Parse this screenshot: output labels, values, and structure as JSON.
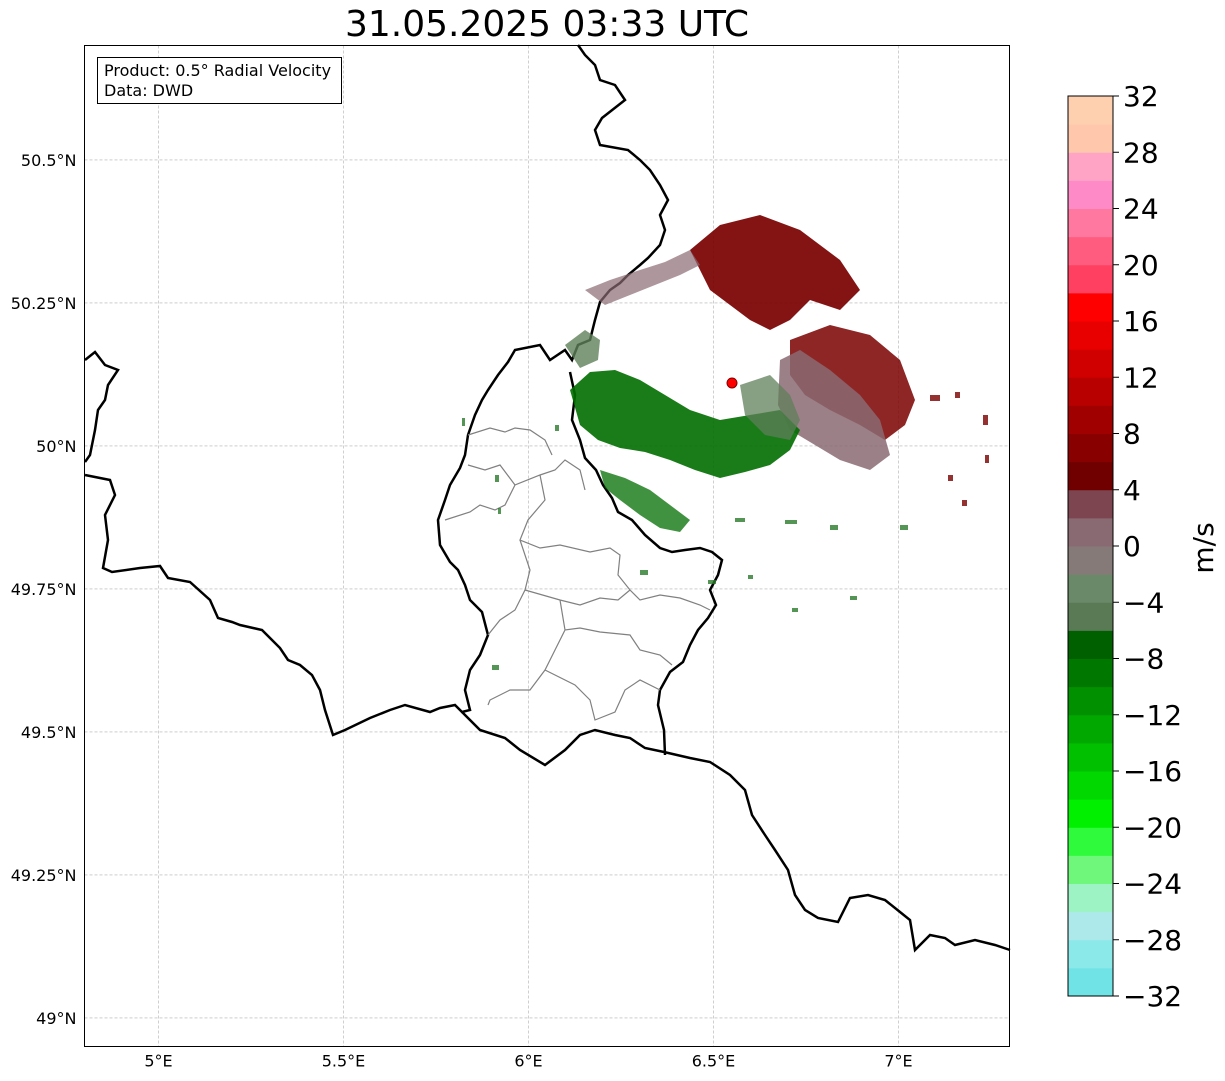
{
  "title": "31.05.2025 03:33 UTC",
  "info": {
    "product": "Product: 0.5° Radial Velocity",
    "data": "Data: DWD"
  },
  "map": {
    "lon_range": [
      4.8,
      7.3
    ],
    "lat_range": [
      48.95,
      50.7
    ],
    "x_ticks": [
      {
        "value": 5.0,
        "label": "5°E"
      },
      {
        "value": 5.5,
        "label": "5.5°E"
      },
      {
        "value": 6.0,
        "label": "6°E"
      },
      {
        "value": 6.5,
        "label": "6.5°E"
      },
      {
        "value": 7.0,
        "label": "7°E"
      }
    ],
    "y_ticks": [
      {
        "value": 49.0,
        "label": "49°N"
      },
      {
        "value": 49.25,
        "label": "49.25°N"
      },
      {
        "value": 49.5,
        "label": "49.5°N"
      },
      {
        "value": 49.75,
        "label": "49.75°N"
      },
      {
        "value": 50.0,
        "label": "50°N"
      },
      {
        "value": 50.25,
        "label": "50.25°N"
      },
      {
        "value": 50.5,
        "label": "50.5°N"
      }
    ],
    "grid": true,
    "radar_site": {
      "lon": 6.55,
      "lat": 50.11
    },
    "site_color": "#ff0000"
  },
  "colorbar": {
    "label": "m/s",
    "vmin": -32,
    "vmax": 32,
    "ticks": [
      "−32",
      "−28",
      "−24",
      "−20",
      "−16",
      "−12",
      "−8",
      "−4",
      "0",
      "4",
      "8",
      "12",
      "16",
      "20",
      "24",
      "28",
      "32"
    ],
    "colors": [
      "#6fe3e6",
      "#8ce9ea",
      "#ade8ea",
      "#9ef3c4",
      "#6ef77a",
      "#2ffb3c",
      "#00f000",
      "#00d800",
      "#00c000",
      "#00a800",
      "#009000",
      "#007800",
      "#006000",
      "#5a7a55",
      "#6a8968",
      "#867a78",
      "#8a6a72",
      "#7c4550",
      "#700000",
      "#880000",
      "#a00000",
      "#b80000",
      "#d00000",
      "#e80000",
      "#ff0000",
      "#ff4060",
      "#ff5c80",
      "#ff78a0",
      "#ff8ac8",
      "#ffa4c4",
      "#ffc8ac",
      "#ffd0b0"
    ]
  }
}
